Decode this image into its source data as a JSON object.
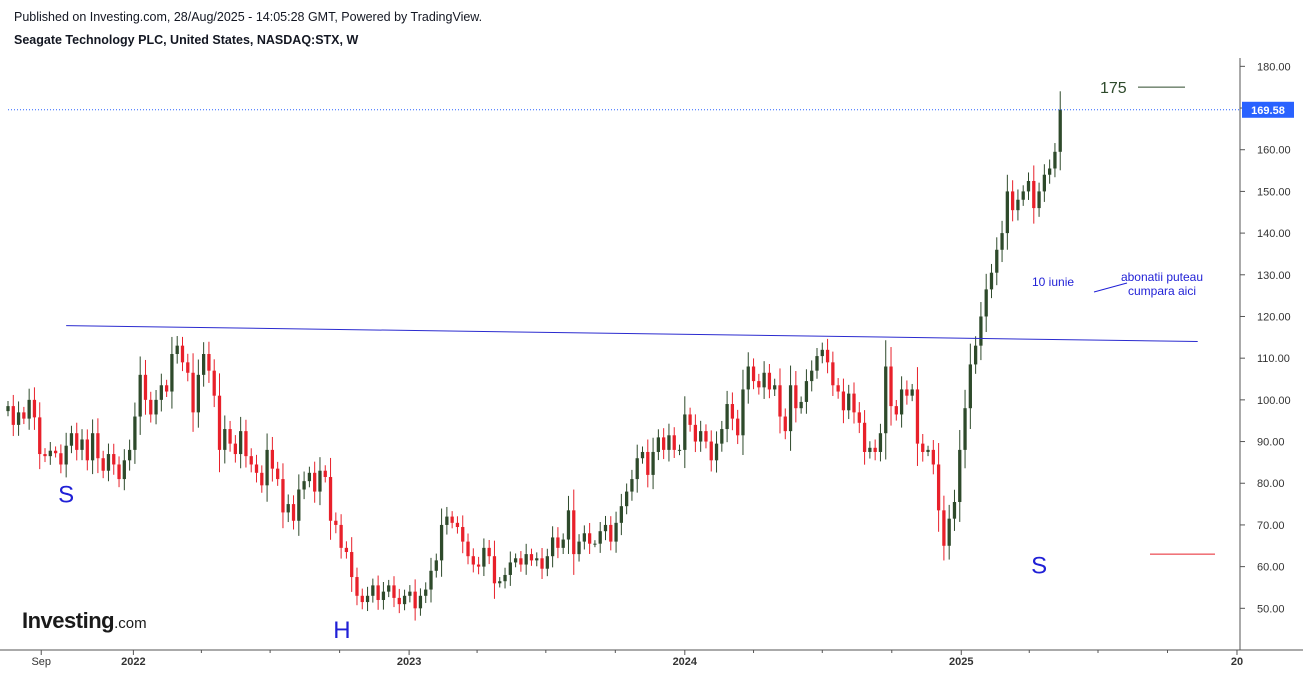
{
  "header": {
    "published": "Published on Investing.com, 28/Aug/2025 - 14:05:28 GMT, Powered by TradingView.",
    "symbol": "Seagate Technology PLC, United States, NASDAQ:STX, W"
  },
  "logo": {
    "brand": "Investing",
    "tld": ".com"
  },
  "colors": {
    "up": "#2e4a2b",
    "down": "#e8202a",
    "trendline": "#2b2bcf",
    "axis": "#555555",
    "price_tag": "#2962ff",
    "label_blue": "#1f1fd6",
    "label_green": "#2e4a2b",
    "level": "#e8202a"
  },
  "chart_data": {
    "type": "candlestick",
    "title": "Seagate Technology PLC, United States, NASDAQ:STX, W",
    "interval": "W",
    "y_axis": {
      "position": "right",
      "ylim": [
        40,
        182
      ],
      "ticks": [
        50,
        60,
        70,
        80,
        90,
        100,
        110,
        120,
        130,
        140,
        150,
        160,
        170,
        180
      ],
      "tick_labels": [
        "50.00",
        "60.00",
        "70.00",
        "80.00",
        "90.00",
        "100.00",
        "110.00",
        "120.00",
        "130.00",
        "140.00",
        "150.00",
        "160.00",
        "170.00",
        "180.00"
      ]
    },
    "x_axis": {
      "xlim": [
        "2021-07-19",
        "2026-01-05"
      ],
      "tick_labels": [
        {
          "date": "2021-09-01",
          "label": "Sep"
        },
        {
          "date": "2022-01-01",
          "label": "2022"
        },
        {
          "date": "2023-01-01",
          "label": "2023"
        },
        {
          "date": "2024-01-01",
          "label": "2024"
        },
        {
          "date": "2025-01-01",
          "label": "2025"
        },
        {
          "date": "2026-01-01",
          "label": "20"
        }
      ],
      "minor_ticks": [
        "2022-04-01",
        "2022-07-01",
        "2022-10-01",
        "2023-04-01",
        "2023-07-01",
        "2023-10-01",
        "2024-04-01",
        "2024-07-01",
        "2024-10-01",
        "2025-04-01",
        "2025-07-01",
        "2025-10-01"
      ]
    },
    "last_price": 169.58,
    "last_price_label": "169.58",
    "closes": [
      98.5,
      94,
      97,
      95.5,
      100,
      95.8,
      87,
      86.5,
      87.8,
      87.2,
      84.5,
      89,
      92,
      88,
      90.5,
      85.5,
      92,
      86,
      83,
      87,
      84.5,
      81,
      85.5,
      88,
      96,
      106,
      100,
      96.5,
      100,
      103.5,
      102,
      111,
      113,
      109,
      106.5,
      97,
      106,
      111,
      107,
      101,
      88,
      93,
      89.5,
      87,
      92.5,
      86.5,
      84.5,
      82.5,
      79.5,
      88,
      83.5,
      81,
      73,
      75,
      71,
      78.5,
      80.5,
      82.5,
      78,
      83,
      81.5,
      71,
      70,
      64.5,
      63.5,
      57.5,
      53,
      51.5,
      53,
      55.5,
      52,
      54,
      55.5,
      52.5,
      51,
      53,
      54,
      50,
      53,
      54.5,
      59,
      61.5,
      70,
      72,
      70.5,
      69.5,
      66,
      62.5,
      60.5,
      60,
      64.5,
      62.5,
      56,
      56.5,
      58,
      61,
      62,
      60.5,
      63,
      61.5,
      62,
      59.5,
      62.5,
      67,
      64.5,
      66.5,
      73.5,
      63,
      66,
      68,
      65.5,
      65.5,
      68.5,
      70,
      66,
      70.5,
      74.5,
      78,
      81,
      86,
      87.5,
      82,
      87.5,
      91,
      88,
      91.5,
      88,
      88,
      96.5,
      94,
      90,
      92.5,
      90,
      85.5,
      89.5,
      93,
      99,
      95.5,
      91.5,
      102.5,
      108,
      104.5,
      103,
      106.5,
      102.5,
      103.5,
      96,
      92.5,
      103.5,
      98,
      99.5,
      104.5,
      107,
      110.5,
      112,
      109,
      103.5,
      102,
      97.5,
      101.5,
      97,
      94.5,
      87.5,
      88.5,
      87.5,
      92,
      108,
      98.5,
      96.5,
      102.5,
      101,
      102.5,
      89.5,
      87.5,
      88,
      84.5,
      73.5,
      65,
      71.5,
      75.5,
      88,
      98,
      108.5,
      113,
      120,
      126.5,
      130.5,
      136,
      140,
      150,
      145.5,
      148,
      150,
      152.5,
      146,
      150,
      154,
      155.5,
      159.5,
      169.58
    ],
    "annotations": {
      "trendline": {
        "from": {
          "date": "2021-10-04",
          "value": 117.8
        },
        "to": {
          "date": "2025-11-10",
          "value": 114
        }
      },
      "target_label": "175",
      "target_level": 175,
      "stop_level": 63,
      "point_label": "10 iunie",
      "note_label_1": "abonatii puteau",
      "note_label_2": "cumpara aici",
      "pattern_labels": [
        {
          "text": "S",
          "date": "2021-10-04",
          "value": 77.5
        },
        {
          "text": "H",
          "date": "2022-10-04",
          "value": 45
        },
        {
          "text": "S",
          "date": "2025-04-14",
          "value": 60.5
        }
      ]
    }
  }
}
